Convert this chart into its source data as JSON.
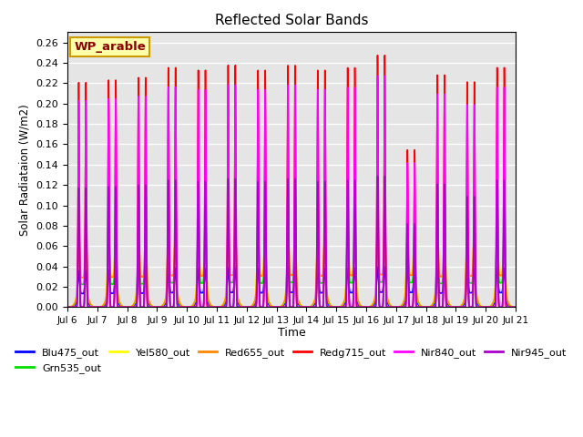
{
  "title": "Reflected Solar Bands",
  "xlabel": "Time",
  "ylabel": "Solar Radiataion (W/m2)",
  "annotation": "WP_arable",
  "num_days": 15,
  "start_day": 6,
  "ylim": [
    0,
    0.27
  ],
  "yticks": [
    0.0,
    0.02,
    0.04,
    0.06,
    0.08,
    0.1,
    0.12,
    0.14,
    0.16,
    0.18,
    0.2,
    0.22,
    0.24,
    0.26
  ],
  "xtick_labels": [
    "Jul 6",
    "Jul 7",
    "Jul 8",
    "Jul 9",
    "Jul 10",
    "Jul 11",
    "Jul 12",
    "Jul 13",
    "Jul 14",
    "Jul 15",
    "Jul 16",
    "Jul 17",
    "Jul 18",
    "Jul 19",
    "Jul 20",
    "Jul 21"
  ],
  "series": [
    {
      "name": "Blu475_out",
      "color": "#0000ff",
      "amp": 0.03,
      "sigma_wide": 0.13,
      "sigma_narrow": 0.03,
      "linewidth": 1.2
    },
    {
      "name": "Grn535_out",
      "color": "#00dd00",
      "amp": 0.05,
      "sigma_wide": 0.13,
      "sigma_narrow": 0.03,
      "linewidth": 1.2
    },
    {
      "name": "Yel580_out",
      "color": "#ffff00",
      "amp": 0.065,
      "sigma_wide": 0.13,
      "sigma_narrow": 0.03,
      "linewidth": 1.2
    },
    {
      "name": "Red655_out",
      "color": "#ff8800",
      "amp": 0.065,
      "sigma_wide": 0.13,
      "sigma_narrow": 0.03,
      "linewidth": 1.2
    },
    {
      "name": "Redg715_out",
      "color": "#ff0000",
      "amp": 0.245,
      "sigma_wide": 0.13,
      "sigma_narrow": 0.018,
      "linewidth": 1.2
    },
    {
      "name": "Nir840_out",
      "color": "#ff00ff",
      "amp": 0.225,
      "sigma_wide": 0.13,
      "sigma_narrow": 0.02,
      "linewidth": 1.2
    },
    {
      "name": "Nir945_out",
      "color": "#aa00cc",
      "amp": 0.13,
      "sigma_wide": 0.13,
      "sigma_narrow": 0.022,
      "linewidth": 1.2
    }
  ],
  "day_amps": [
    0.9,
    0.91,
    0.92,
    0.96,
    0.95,
    0.97,
    0.95,
    0.97,
    0.95,
    0.96,
    0.99,
    0.97,
    0.93,
    0.95,
    0.96
  ],
  "redg_factors": [
    1.0,
    1.0,
    1.0,
    1.0,
    1.0,
    1.0,
    1.0,
    1.0,
    1.0,
    1.0,
    1.02,
    0.65,
    1.0,
    0.95,
    1.0
  ],
  "nir840_factors": [
    1.0,
    1.0,
    1.0,
    1.0,
    1.0,
    1.0,
    1.0,
    1.0,
    1.0,
    1.0,
    1.02,
    0.65,
    1.0,
    0.93,
    1.0
  ],
  "nir945_factors": [
    1.0,
    1.0,
    1.0,
    1.0,
    1.0,
    1.0,
    1.0,
    1.0,
    1.0,
    1.0,
    1.0,
    0.65,
    1.0,
    0.88,
    1.0
  ],
  "background_color": "#e5e5e5",
  "fig_bg": "#ffffff",
  "grid_color": "#ffffff",
  "grid_linewidth": 0.9
}
